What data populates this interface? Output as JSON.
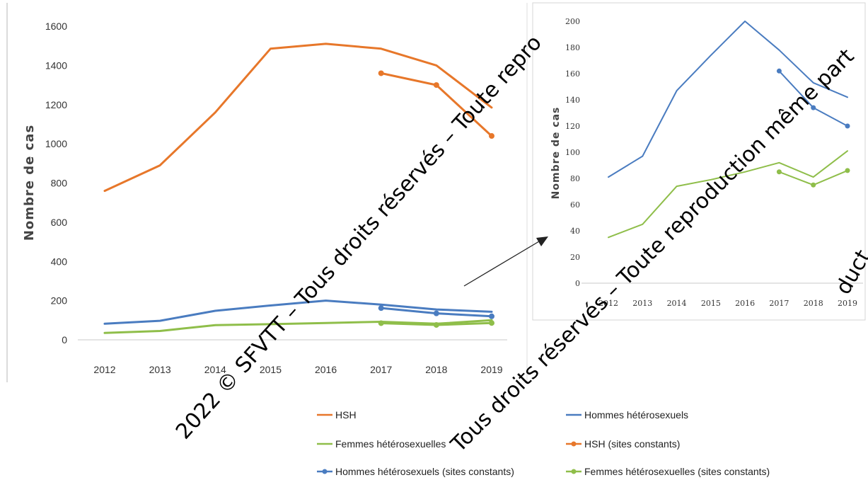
{
  "chart_data": [
    {
      "type": "line",
      "title": "",
      "xlabel": "",
      "ylabel": "Nombre de cas",
      "ylim": [
        0,
        1600
      ],
      "yticks": [
        0,
        200,
        400,
        600,
        800,
        1000,
        1200,
        1400,
        1600
      ],
      "categories": [
        "2012",
        "2013",
        "2014",
        "2015",
        "2016",
        "2017",
        "2018",
        "2019"
      ],
      "grid": false,
      "series": [
        {
          "key": "hsh",
          "values": [
            760,
            890,
            1160,
            1485,
            1510,
            1485,
            1400,
            1185
          ]
        },
        {
          "key": "hom",
          "values": [
            82,
            97,
            148,
            175,
            200,
            180,
            155,
            143
          ]
        },
        {
          "key": "fem",
          "values": [
            35,
            45,
            75,
            80,
            86,
            92,
            82,
            100
          ]
        },
        {
          "key": "hsh_c",
          "values": [
            null,
            null,
            null,
            null,
            null,
            1360,
            1300,
            1040
          ]
        },
        {
          "key": "hom_c",
          "values": [
            null,
            null,
            null,
            null,
            null,
            162,
            135,
            120
          ]
        },
        {
          "key": "fem_c",
          "values": [
            null,
            null,
            null,
            null,
            null,
            85,
            76,
            86
          ]
        }
      ]
    },
    {
      "type": "line",
      "title": "",
      "xlabel": "",
      "ylabel": "Nombre de cas",
      "ylim": [
        0,
        200
      ],
      "yticks": [
        0,
        20,
        40,
        60,
        80,
        100,
        120,
        140,
        160,
        180,
        200
      ],
      "categories": [
        "2012",
        "2013",
        "2014",
        "2015",
        "2016",
        "2017",
        "2018",
        "2019"
      ],
      "grid": false,
      "series": [
        {
          "key": "hom",
          "values": [
            81,
            97,
            147,
            174,
            200,
            178,
            153,
            142
          ]
        },
        {
          "key": "fem",
          "values": [
            35,
            45,
            74,
            79,
            85,
            92,
            81,
            101
          ]
        },
        {
          "key": "hom_c",
          "values": [
            null,
            null,
            null,
            null,
            null,
            162,
            134,
            120
          ]
        },
        {
          "key": "fem_c",
          "values": [
            null,
            null,
            null,
            null,
            null,
            85,
            75,
            86
          ]
        }
      ]
    }
  ],
  "legend": {
    "placement": "bottom",
    "items": [
      {
        "key": "hsh",
        "label": "HSH",
        "color": "#E7772A",
        "marker": false
      },
      {
        "key": "hom",
        "label": "Hommes hétérosexuels",
        "color": "#4A7CC0",
        "marker": false
      },
      {
        "key": "fem",
        "label": "Femmes hétérosexuelles",
        "color": "#8FBE4A",
        "marker": false
      },
      {
        "key": "hsh_c",
        "label": "HSH (sites constants)",
        "color": "#E7772A",
        "marker": true
      },
      {
        "key": "hom_c",
        "label": "Hommes hétérosexuels (sites constants)",
        "color": "#4A7CC0",
        "marker": true
      },
      {
        "key": "fem_c",
        "label": "Femmes hétérosexuelles (sites constants)",
        "color": "#8FBE4A",
        "marker": true
      }
    ]
  },
  "watermarks": [
    "2022 © SFVTT – Tous droits réservés – Toute repro",
    "Tous droits réservés – Toute reproduction même part",
    "duct"
  ],
  "colors": {
    "hsh": "#E7772A",
    "hom": "#4A7CC0",
    "fem": "#8FBE4A",
    "axis": "#b8b8b8",
    "arrow": "#222222"
  }
}
